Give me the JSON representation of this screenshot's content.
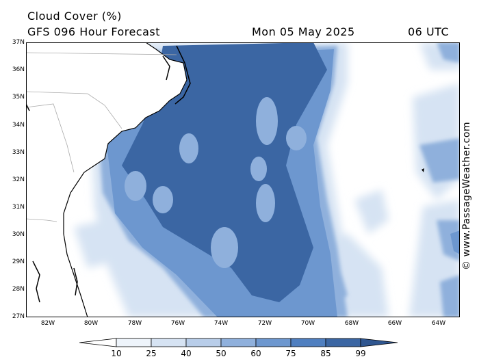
{
  "header": {
    "title": "Cloud Cover (%)",
    "subtitle": "GFS 096 Hour Forecast",
    "date": "Mon 05 May 2025",
    "time": "06 UTC"
  },
  "credit": "© www.PassageWeather.com",
  "axes": {
    "lat_labels": [
      "37N",
      "36N",
      "35N",
      "34N",
      "33N",
      "32N",
      "31N",
      "30N",
      "29N",
      "28N",
      "27N"
    ],
    "lon_labels": [
      "82W",
      "80W",
      "78W",
      "76W",
      "74W",
      "72W",
      "70W",
      "68W",
      "66W",
      "64W"
    ]
  },
  "colorbar": {
    "labels": [
      "10",
      "25",
      "40",
      "50",
      "60",
      "75",
      "85",
      "99"
    ],
    "colors": [
      "#ffffff",
      "#eef4fb",
      "#d6e3f3",
      "#b8cde9",
      "#8fb0dc",
      "#6d97cf",
      "#4f7fc0",
      "#3b66a3"
    ]
  },
  "map_colors": {
    "land": "#ffffff",
    "coast": "#000000",
    "borders": "#aaaaaa",
    "cloud_low": "#d6e3f3",
    "cloud_mid": "#8fb0dc",
    "cloud_high": "#6d97cf",
    "cloud_max": "#3b66a3"
  }
}
